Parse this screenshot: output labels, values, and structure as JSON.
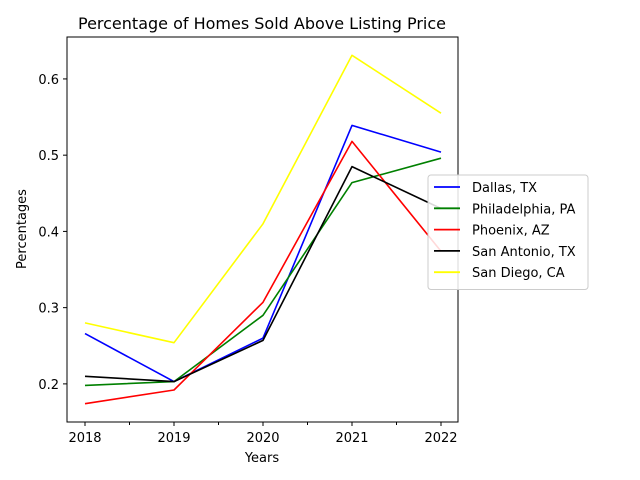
{
  "chart_data": {
    "type": "line",
    "title": "Percentage of Homes Sold Above Listing Price",
    "xlabel": "Years",
    "ylabel": "Percentages",
    "x": [
      "2018",
      "2019",
      "2020",
      "2021",
      "2022"
    ],
    "ylim": [
      0.15,
      0.655
    ],
    "yticks": [
      "0.2",
      "0.3",
      "0.4",
      "0.5",
      "0.6"
    ],
    "grid": false,
    "legend_position": "center-right (outside plot)",
    "series": [
      {
        "name": "Dallas, TX",
        "color": "#0000ff",
        "values": [
          0.266,
          0.203,
          0.26,
          0.539,
          0.504
        ]
      },
      {
        "name": "Philadelphia, PA",
        "color": "#008000",
        "values": [
          0.198,
          0.203,
          0.29,
          0.464,
          0.496
        ]
      },
      {
        "name": "Phoenix, AZ",
        "color": "#ff0000",
        "values": [
          0.174,
          0.192,
          0.307,
          0.518,
          0.374
        ]
      },
      {
        "name": "San Antonio, TX",
        "color": "#000000",
        "values": [
          0.21,
          0.203,
          0.257,
          0.485,
          0.43
        ]
      },
      {
        "name": "San Diego, CA",
        "color": "#ffff00",
        "values": [
          0.28,
          0.254,
          0.41,
          0.631,
          0.555
        ]
      }
    ]
  }
}
